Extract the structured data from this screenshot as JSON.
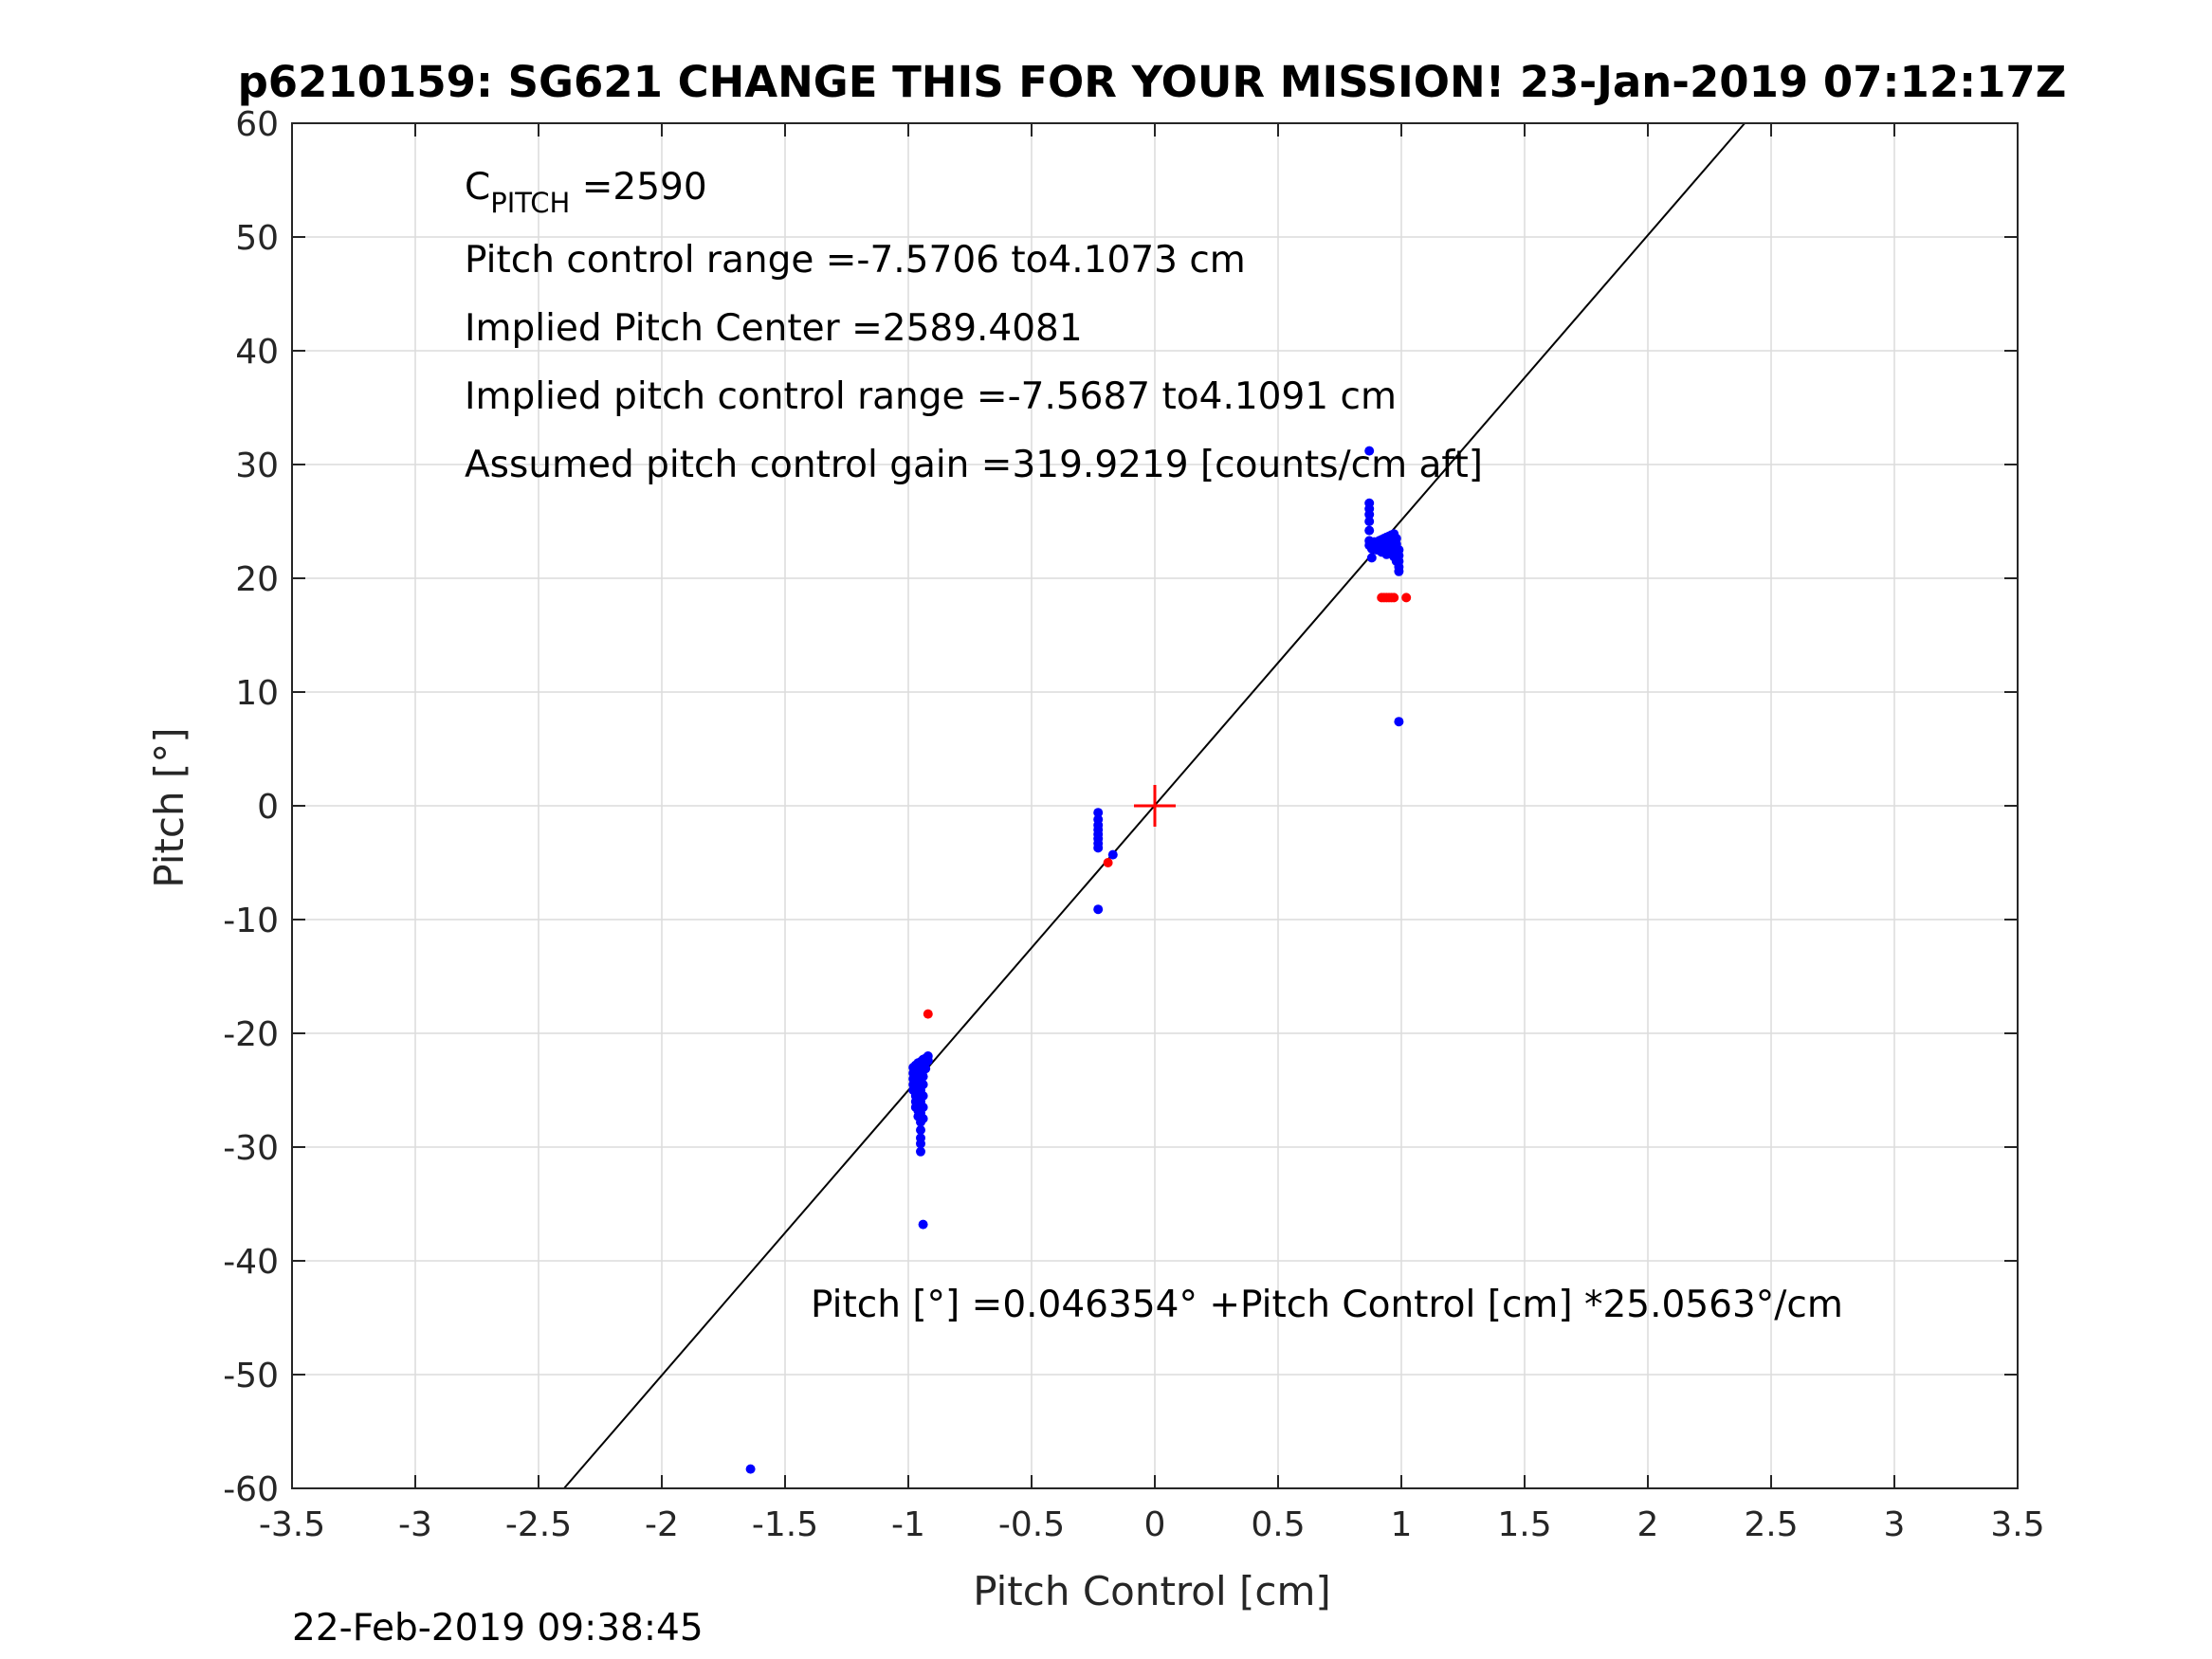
{
  "chart_data": {
    "type": "scatter",
    "title": "p6210159: SG621 CHANGE THIS FOR YOUR MISSION! 23-Jan-2019 07:12:17Z",
    "xlabel": "Pitch Control [cm]",
    "ylabel": "Pitch [°]",
    "xlim": [
      -3.5,
      3.5
    ],
    "ylim": [
      -60,
      60
    ],
    "xticks": [
      -3.5,
      -3,
      -2.5,
      -2,
      -1.5,
      -1,
      -0.5,
      0,
      0.5,
      1,
      1.5,
      2,
      2.5,
      3,
      3.5
    ],
    "yticks": [
      -60,
      -50,
      -40,
      -30,
      -20,
      -10,
      0,
      10,
      20,
      30,
      40,
      50,
      60
    ],
    "grid": true,
    "annotations": {
      "cpitch_main": "C",
      "cpitch_sub": "PITCH",
      "cpitch_value": " =2590",
      "line2": "Pitch control range =-7.5706 to4.1073 cm",
      "line3": "Implied Pitch Center =2589.4081",
      "line4": "Implied pitch control range =-7.5687 to4.1091 cm",
      "line5": "Assumed pitch control gain =319.9219 [counts/cm aft]",
      "fit_equation": "Pitch [°] =0.046354° +Pitch Control [cm] *25.0563°/cm"
    },
    "fit_line": {
      "intercept": 0.046354,
      "slope": 25.0563,
      "color": "#000000"
    },
    "center_marker": {
      "x": 0,
      "y": 0,
      "color": "#ff0000"
    },
    "series": [
      {
        "color": "#0000ff",
        "points": [
          [
            -0.98,
            -23.0
          ],
          [
            -0.98,
            -23.5
          ],
          [
            -0.98,
            -24.0
          ],
          [
            -0.98,
            -24.5
          ],
          [
            -0.98,
            -25.0
          ],
          [
            -0.97,
            -22.8
          ],
          [
            -0.97,
            -23.3
          ],
          [
            -0.97,
            -23.8
          ],
          [
            -0.97,
            -24.3
          ],
          [
            -0.97,
            -24.8
          ],
          [
            -0.97,
            -25.5
          ],
          [
            -0.97,
            -26.0
          ],
          [
            -0.97,
            -26.5
          ],
          [
            -0.96,
            -22.6
          ],
          [
            -0.96,
            -23.2
          ],
          [
            -0.96,
            -23.7
          ],
          [
            -0.96,
            -24.2
          ],
          [
            -0.96,
            -24.7
          ],
          [
            -0.96,
            -25.2
          ],
          [
            -0.96,
            -25.8
          ],
          [
            -0.96,
            -26.3
          ],
          [
            -0.96,
            -26.8
          ],
          [
            -0.96,
            -27.3
          ],
          [
            -0.95,
            -22.5
          ],
          [
            -0.95,
            -23.0
          ],
          [
            -0.95,
            -23.5
          ],
          [
            -0.95,
            -24.0
          ],
          [
            -0.95,
            -25.0
          ],
          [
            -0.95,
            -26.0
          ],
          [
            -0.95,
            -27.0
          ],
          [
            -0.95,
            -27.8
          ],
          [
            -0.95,
            -28.5
          ],
          [
            -0.95,
            -29.2
          ],
          [
            -0.95,
            -29.7
          ],
          [
            -0.95,
            -30.4
          ],
          [
            -0.94,
            -22.3
          ],
          [
            -0.94,
            -22.8
          ],
          [
            -0.94,
            -23.3
          ],
          [
            -0.94,
            -23.8
          ],
          [
            -0.94,
            -24.5
          ],
          [
            -0.94,
            -25.5
          ],
          [
            -0.94,
            -26.5
          ],
          [
            -0.94,
            -27.5
          ],
          [
            -0.93,
            -22.2
          ],
          [
            -0.93,
            -22.6
          ],
          [
            -0.93,
            -23.1
          ],
          [
            -0.92,
            -22.0
          ],
          [
            -0.92,
            -22.4
          ],
          [
            -0.94,
            -36.8
          ],
          [
            -1.64,
            -58.3
          ],
          [
            -0.23,
            -0.6
          ],
          [
            -0.23,
            -1.2
          ],
          [
            -0.23,
            -1.7
          ],
          [
            -0.23,
            -2.1
          ],
          [
            -0.23,
            -2.5
          ],
          [
            -0.23,
            -2.9
          ],
          [
            -0.23,
            -3.3
          ],
          [
            -0.23,
            -3.7
          ],
          [
            -0.23,
            -9.1
          ],
          [
            -0.17,
            -4.3
          ],
          [
            0.87,
            31.2
          ],
          [
            0.87,
            26.6
          ],
          [
            0.87,
            26.1
          ],
          [
            0.87,
            25.6
          ],
          [
            0.87,
            25.0
          ],
          [
            0.87,
            24.2
          ],
          [
            0.87,
            23.3
          ],
          [
            0.87,
            22.9
          ],
          [
            0.88,
            22.6
          ],
          [
            0.88,
            21.8
          ],
          [
            0.89,
            23.2
          ],
          [
            0.89,
            22.8
          ],
          [
            0.9,
            23.0
          ],
          [
            0.9,
            22.5
          ],
          [
            0.91,
            23.3
          ],
          [
            0.91,
            22.8
          ],
          [
            0.92,
            23.4
          ],
          [
            0.92,
            22.9
          ],
          [
            0.92,
            22.3
          ],
          [
            0.93,
            23.5
          ],
          [
            0.93,
            23.0
          ],
          [
            0.93,
            22.4
          ],
          [
            0.94,
            23.6
          ],
          [
            0.94,
            23.1
          ],
          [
            0.94,
            22.6
          ],
          [
            0.94,
            22.1
          ],
          [
            0.95,
            23.7
          ],
          [
            0.95,
            23.2
          ],
          [
            0.95,
            22.7
          ],
          [
            0.95,
            22.2
          ],
          [
            0.96,
            23.8
          ],
          [
            0.96,
            23.3
          ],
          [
            0.96,
            22.8
          ],
          [
            0.96,
            22.3
          ],
          [
            0.97,
            23.9
          ],
          [
            0.97,
            23.4
          ],
          [
            0.97,
            22.9
          ],
          [
            0.97,
            22.4
          ],
          [
            0.97,
            21.9
          ],
          [
            0.98,
            23.5
          ],
          [
            0.98,
            23.0
          ],
          [
            0.98,
            22.5
          ],
          [
            0.98,
            22.0
          ],
          [
            0.98,
            21.5
          ],
          [
            0.99,
            22.5
          ],
          [
            0.99,
            22.0
          ],
          [
            0.99,
            21.5
          ],
          [
            0.99,
            21.0
          ],
          [
            0.99,
            20.6
          ],
          [
            0.99,
            7.4
          ]
        ]
      },
      {
        "color": "#ff0000",
        "points": [
          [
            -0.92,
            -18.3
          ],
          [
            -0.19,
            -5.0
          ],
          [
            0.92,
            18.3
          ],
          [
            0.93,
            18.3
          ],
          [
            0.94,
            18.3
          ],
          [
            0.95,
            18.3
          ],
          [
            0.96,
            18.3
          ],
          [
            0.97,
            18.3
          ],
          [
            1.02,
            18.3
          ]
        ]
      }
    ],
    "footer_timestamp": "22-Feb-2019 09:38:45"
  }
}
